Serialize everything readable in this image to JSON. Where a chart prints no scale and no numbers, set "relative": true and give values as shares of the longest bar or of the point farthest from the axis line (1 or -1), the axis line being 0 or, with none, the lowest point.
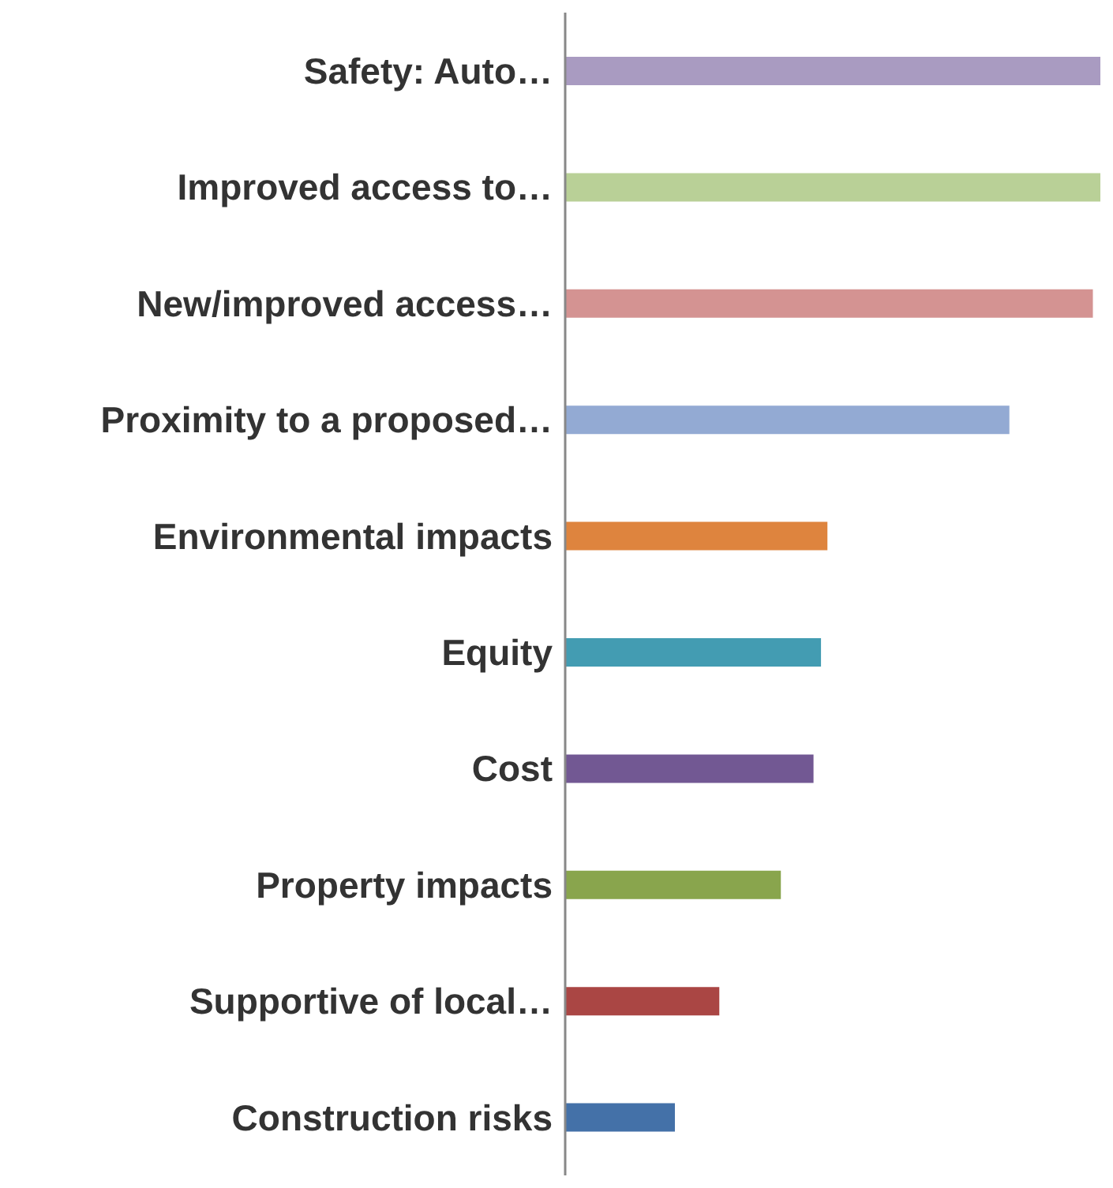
{
  "chart_data": {
    "type": "bar",
    "orientation": "horizontal",
    "relative": true,
    "categories": [
      "Safety: Auto…",
      "Improved access to…",
      "New/improved access…",
      "Proximity to a proposed…",
      "Environmental impacts",
      "Equity",
      "Cost",
      "Property impacts",
      "Supportive of local…",
      "Construction risks"
    ],
    "values": [
      1,
      1,
      0.986,
      0.83,
      0.49,
      0.478,
      0.464,
      0.403,
      0.288,
      0.205
    ],
    "colors": [
      "#a99bc1",
      "#b9d097",
      "#d49392",
      "#93aad3",
      "#de843e",
      "#439cb2",
      "#725893",
      "#89a54d",
      "#aa4644",
      "#4471a8"
    ]
  }
}
